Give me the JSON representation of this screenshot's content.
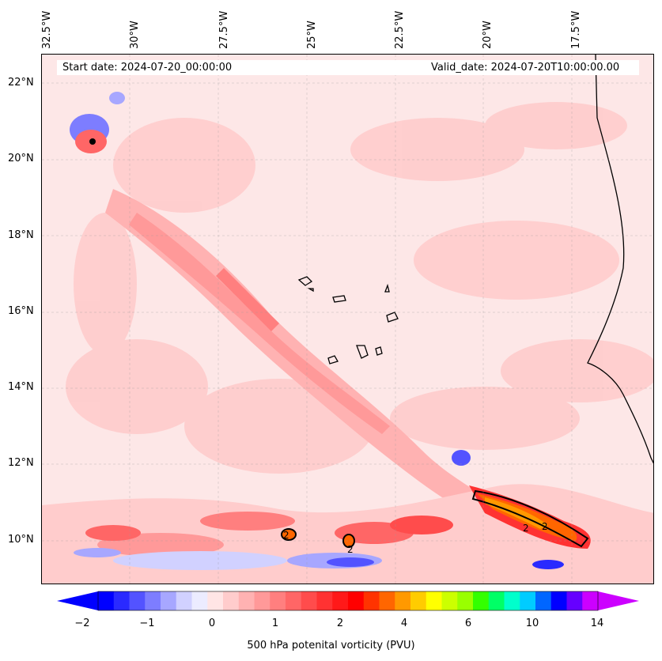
{
  "map": {
    "start_date": "Start date: 2024-07-20_00:00:00",
    "valid_date": "Valid_date: 2024-07-20T10:00:00.00",
    "lon_labels": [
      "32.5°W",
      "30°W",
      "27.5°W",
      "25°W",
      "22.5°W",
      "20°W",
      "17.5°W"
    ],
    "lat_labels": [
      "22°N",
      "20°N",
      "18°N",
      "16°N",
      "14°N",
      "12°N",
      "10°N"
    ],
    "extent": {
      "lon_min": -32.5,
      "lon_max": -15.0,
      "lat_min": 8.9,
      "lat_max": 22.8
    },
    "contour_labels": [
      "2",
      "2",
      "2",
      "2"
    ]
  },
  "colorbar": {
    "label": "500 hPa potenital vorticity (PVU)",
    "ticks": [
      "−2",
      "−1",
      "0",
      "1",
      "2",
      "4",
      "6",
      "10",
      "14"
    ],
    "colors": [
      "#0000ff",
      "#2a2aff",
      "#5353ff",
      "#7d7dff",
      "#a7a7ff",
      "#d1d1ff",
      "#ececff",
      "#ffe5e5",
      "#ffcccc",
      "#ffb2b2",
      "#ff9999",
      "#ff7f7f",
      "#ff6666",
      "#ff4c4c",
      "#ff3232",
      "#ff1919",
      "#ff0000",
      "#ff3300",
      "#ff6600",
      "#ff9900",
      "#ffcc00",
      "#ffff00",
      "#ccff00",
      "#99ff00",
      "#33ff00",
      "#00ff66",
      "#00ffcc",
      "#00ccff",
      "#0066ff",
      "#0000ff",
      "#6600ff",
      "#cc00ff"
    ]
  }
}
